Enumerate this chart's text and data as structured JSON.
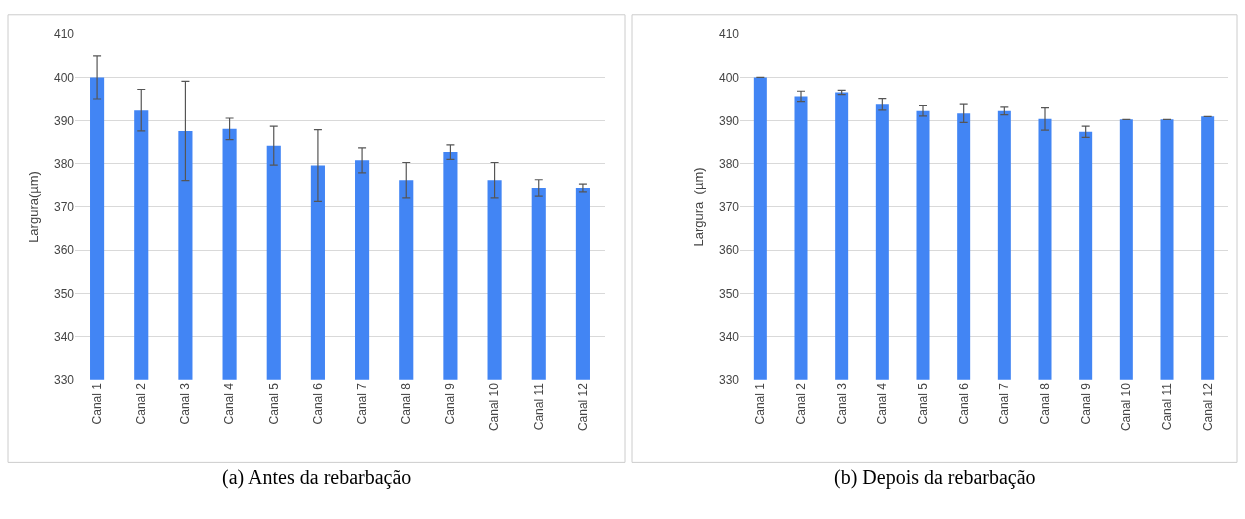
{
  "chart_data": [
    {
      "type": "bar",
      "ylabel": "Largura(µm)",
      "annotations": [
        "(a) Antes da rebarbação"
      ],
      "categories": [
        "Canal 1",
        "Canal 2",
        "Canal 3",
        "Canal 4",
        "Canal 5",
        "Canal 6",
        "Canal 7",
        "Canal 8",
        "Canal 9",
        "Canal 10",
        "Canal 11",
        "Canal 12"
      ],
      "values": [
        400,
        392.4,
        387.6,
        388.1,
        384.2,
        379.6,
        380.8,
        376.2,
        382.7,
        376.2,
        374.4,
        374.4
      ],
      "errors": [
        5,
        4.8,
        11.5,
        2.5,
        4.5,
        8.3,
        2.9,
        4.1,
        1.7,
        4.1,
        1.9,
        0.9
      ],
      "color": "#4285f4",
      "ylim": [
        330,
        410
      ],
      "yticks": [
        330,
        340,
        350,
        360,
        370,
        380,
        390,
        400,
        410
      ],
      "grid": "y"
    },
    {
      "type": "bar",
      "ylabel": "Largura  (µm)",
      "annotations": [
        "(b) Depois da rebarbação"
      ],
      "categories": [
        "Canal 1",
        "Canal 2",
        "Canal 3",
        "Canal 4",
        "Canal 5",
        "Canal 6",
        "Canal 7",
        "Canal 8",
        "Canal 9",
        "Canal 10",
        "Canal 11",
        "Canal 12"
      ],
      "values": [
        400,
        395.6,
        396.5,
        393.8,
        392.3,
        391.7,
        392.3,
        390.4,
        387.4,
        390.3,
        390.3,
        391
      ],
      "errors": [
        null,
        1.2,
        0.5,
        1.3,
        1.2,
        2.1,
        0.9,
        2.6,
        1.3,
        null,
        null,
        null
      ],
      "color": "#4285f4",
      "ylim": [
        330,
        410
      ],
      "yticks": [
        330,
        340,
        350,
        360,
        370,
        380,
        390,
        400,
        410
      ],
      "grid": "y"
    }
  ]
}
